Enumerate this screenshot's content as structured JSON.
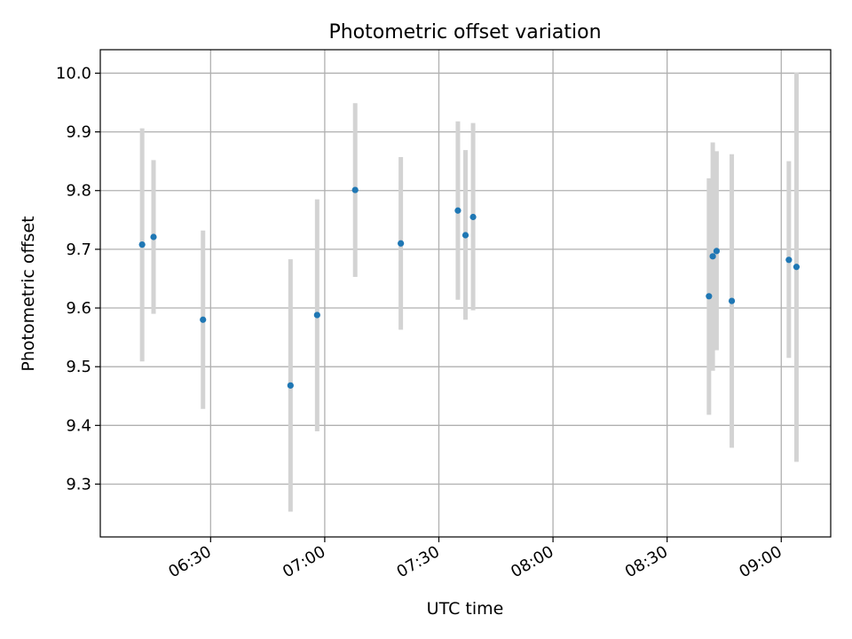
{
  "chart_data": {
    "type": "scatter",
    "title": "Photometric offset variation",
    "xlabel": "UTC time",
    "ylabel": "Photometric offset",
    "x_ticks": [
      "06:30",
      "07:00",
      "07:30",
      "08:00",
      "08:30",
      "09:00"
    ],
    "y_ticks": [
      "9.3",
      "9.4",
      "9.5",
      "9.6",
      "9.7",
      "9.8",
      "9.9",
      "10.0"
    ],
    "xlim": [
      "06:01",
      "09:13"
    ],
    "ylim": [
      9.21,
      10.04
    ],
    "grid": true,
    "marker_color": "#1f77b4",
    "errorbar_color": "#d3d3d3",
    "points": [
      {
        "t": "06:12",
        "y": 9.708,
        "lo": 9.509,
        "hi": 9.906
      },
      {
        "t": "06:15",
        "y": 9.721,
        "lo": 9.59,
        "hi": 9.852
      },
      {
        "t": "06:28",
        "y": 9.58,
        "lo": 9.428,
        "hi": 9.732
      },
      {
        "t": "06:51",
        "y": 9.468,
        "lo": 9.253,
        "hi": 9.683
      },
      {
        "t": "06:58",
        "y": 9.588,
        "lo": 9.39,
        "hi": 9.785
      },
      {
        "t": "07:08",
        "y": 9.801,
        "lo": 9.653,
        "hi": 9.949
      },
      {
        "t": "07:20",
        "y": 9.71,
        "lo": 9.563,
        "hi": 9.857
      },
      {
        "t": "07:35",
        "y": 9.766,
        "lo": 9.614,
        "hi": 9.918
      },
      {
        "t": "07:37",
        "y": 9.724,
        "lo": 9.58,
        "hi": 9.869
      },
      {
        "t": "07:39",
        "y": 9.755,
        "lo": 9.596,
        "hi": 9.915
      },
      {
        "t": "08:41",
        "y": 9.62,
        "lo": 9.418,
        "hi": 9.821
      },
      {
        "t": "08:42",
        "y": 9.688,
        "lo": 9.493,
        "hi": 9.882
      },
      {
        "t": "08:43",
        "y": 9.697,
        "lo": 9.528,
        "hi": 9.867
      },
      {
        "t": "08:47",
        "y": 9.612,
        "lo": 9.362,
        "hi": 9.862
      },
      {
        "t": "09:02",
        "y": 9.682,
        "lo": 9.515,
        "hi": 9.85
      },
      {
        "t": "09:04",
        "y": 9.67,
        "lo": 9.338,
        "hi": 10.001
      }
    ]
  }
}
